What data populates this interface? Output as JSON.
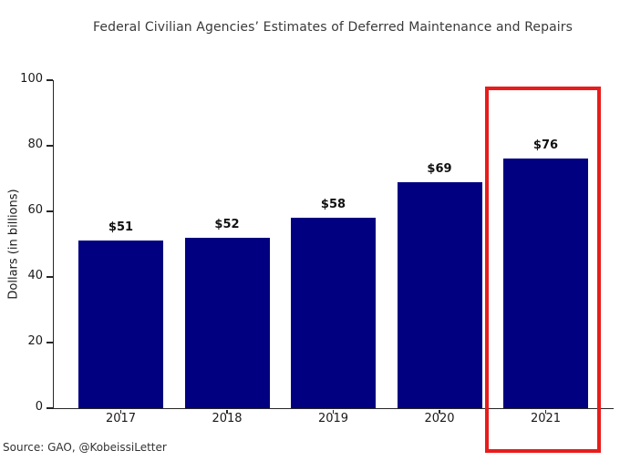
{
  "chart_data": {
    "type": "bar",
    "title": "Federal Civilian Agencies’ Estimates of Deferred Maintenance and Repairs",
    "xlabel": "",
    "ylabel": "Dollars (in billions)",
    "categories": [
      "2017",
      "2018",
      "2019",
      "2020",
      "2021"
    ],
    "values": [
      51,
      52,
      58,
      69,
      76
    ],
    "value_labels": [
      "$51",
      "$52",
      "$58",
      "$69",
      "$76"
    ],
    "ylim": [
      0,
      100
    ],
    "yticks": [
      0,
      20,
      40,
      60,
      80,
      100
    ],
    "grid": false,
    "legend": "none",
    "bar_color": "#000080",
    "highlight_index": 4,
    "highlight_color": "#e81c1c",
    "source": "Source: GAO, @KobeissiLetter"
  }
}
